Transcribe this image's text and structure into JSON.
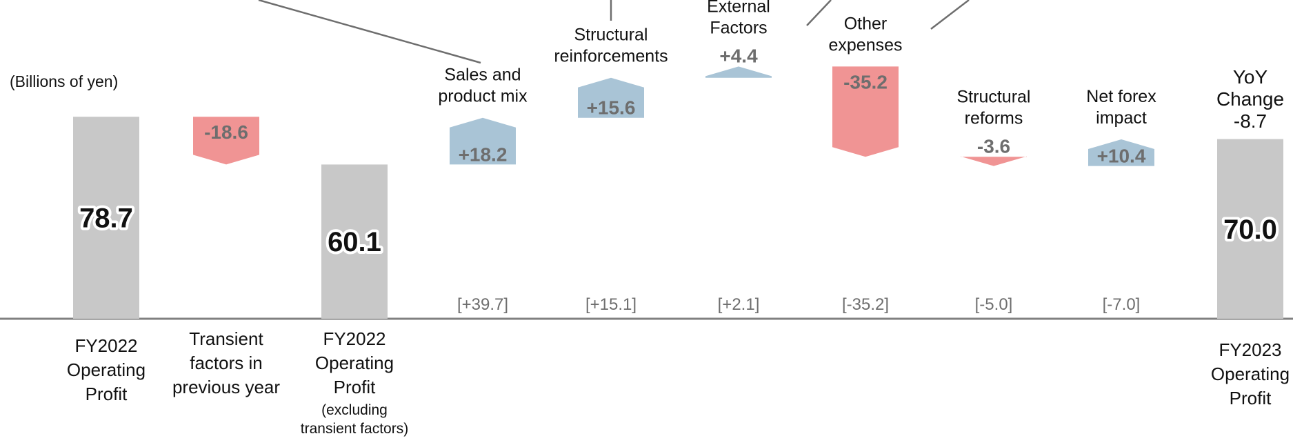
{
  "chart_data": {
    "type": "bar",
    "subtype": "waterfall",
    "unit_label": "(Billions of yen)",
    "colors": {
      "total": "#c8c8c8",
      "increase": "#a9c4d6",
      "decrease": "#f09494",
      "axis": "#808080"
    },
    "bars": [
      {
        "kind": "total",
        "value": 78.7,
        "label": "78.7",
        "category": [
          "FY2022",
          "Operating",
          "Profit"
        ]
      },
      {
        "kind": "decrease",
        "value": -18.6,
        "label": "-18.6",
        "category": [
          "Transient",
          "factors in",
          "previous year"
        ]
      },
      {
        "kind": "total",
        "value": 60.1,
        "label": "60.1",
        "category": [
          "FY2022",
          "Operating",
          "Profit"
        ],
        "note": [
          "(excluding",
          "transient factors)"
        ]
      },
      {
        "kind": "increase",
        "value": 18.2,
        "label": "+18.2",
        "name": [
          "Sales and",
          "product mix"
        ],
        "bracket": "[+39.7]"
      },
      {
        "kind": "increase",
        "value": 15.6,
        "label": "+15.6",
        "name": [
          "Structural",
          "reinforcements"
        ],
        "bracket": "[+15.1]"
      },
      {
        "kind": "increase",
        "value": 4.4,
        "label": "+4.4",
        "name": [
          "External",
          "Factors"
        ],
        "bracket": "[+2.1]"
      },
      {
        "kind": "decrease",
        "value": -35.2,
        "label": "-35.2",
        "name": [
          "Other",
          "expenses"
        ],
        "bracket": "[-35.2]"
      },
      {
        "kind": "decrease",
        "value": -3.6,
        "label": "-3.6",
        "name": [
          "Structural",
          "reforms"
        ],
        "bracket": "[-5.0]"
      },
      {
        "kind": "increase",
        "value": 10.4,
        "label": "+10.4",
        "name": [
          "Net forex",
          "impact"
        ],
        "bracket": "[-7.0]"
      },
      {
        "kind": "total",
        "value": 70.0,
        "label": "70.0",
        "category": [
          "FY2023",
          "Operating",
          "Profit"
        ]
      }
    ],
    "yoy": {
      "lines": [
        "YoY",
        "Change",
        "-8.7"
      ]
    }
  }
}
